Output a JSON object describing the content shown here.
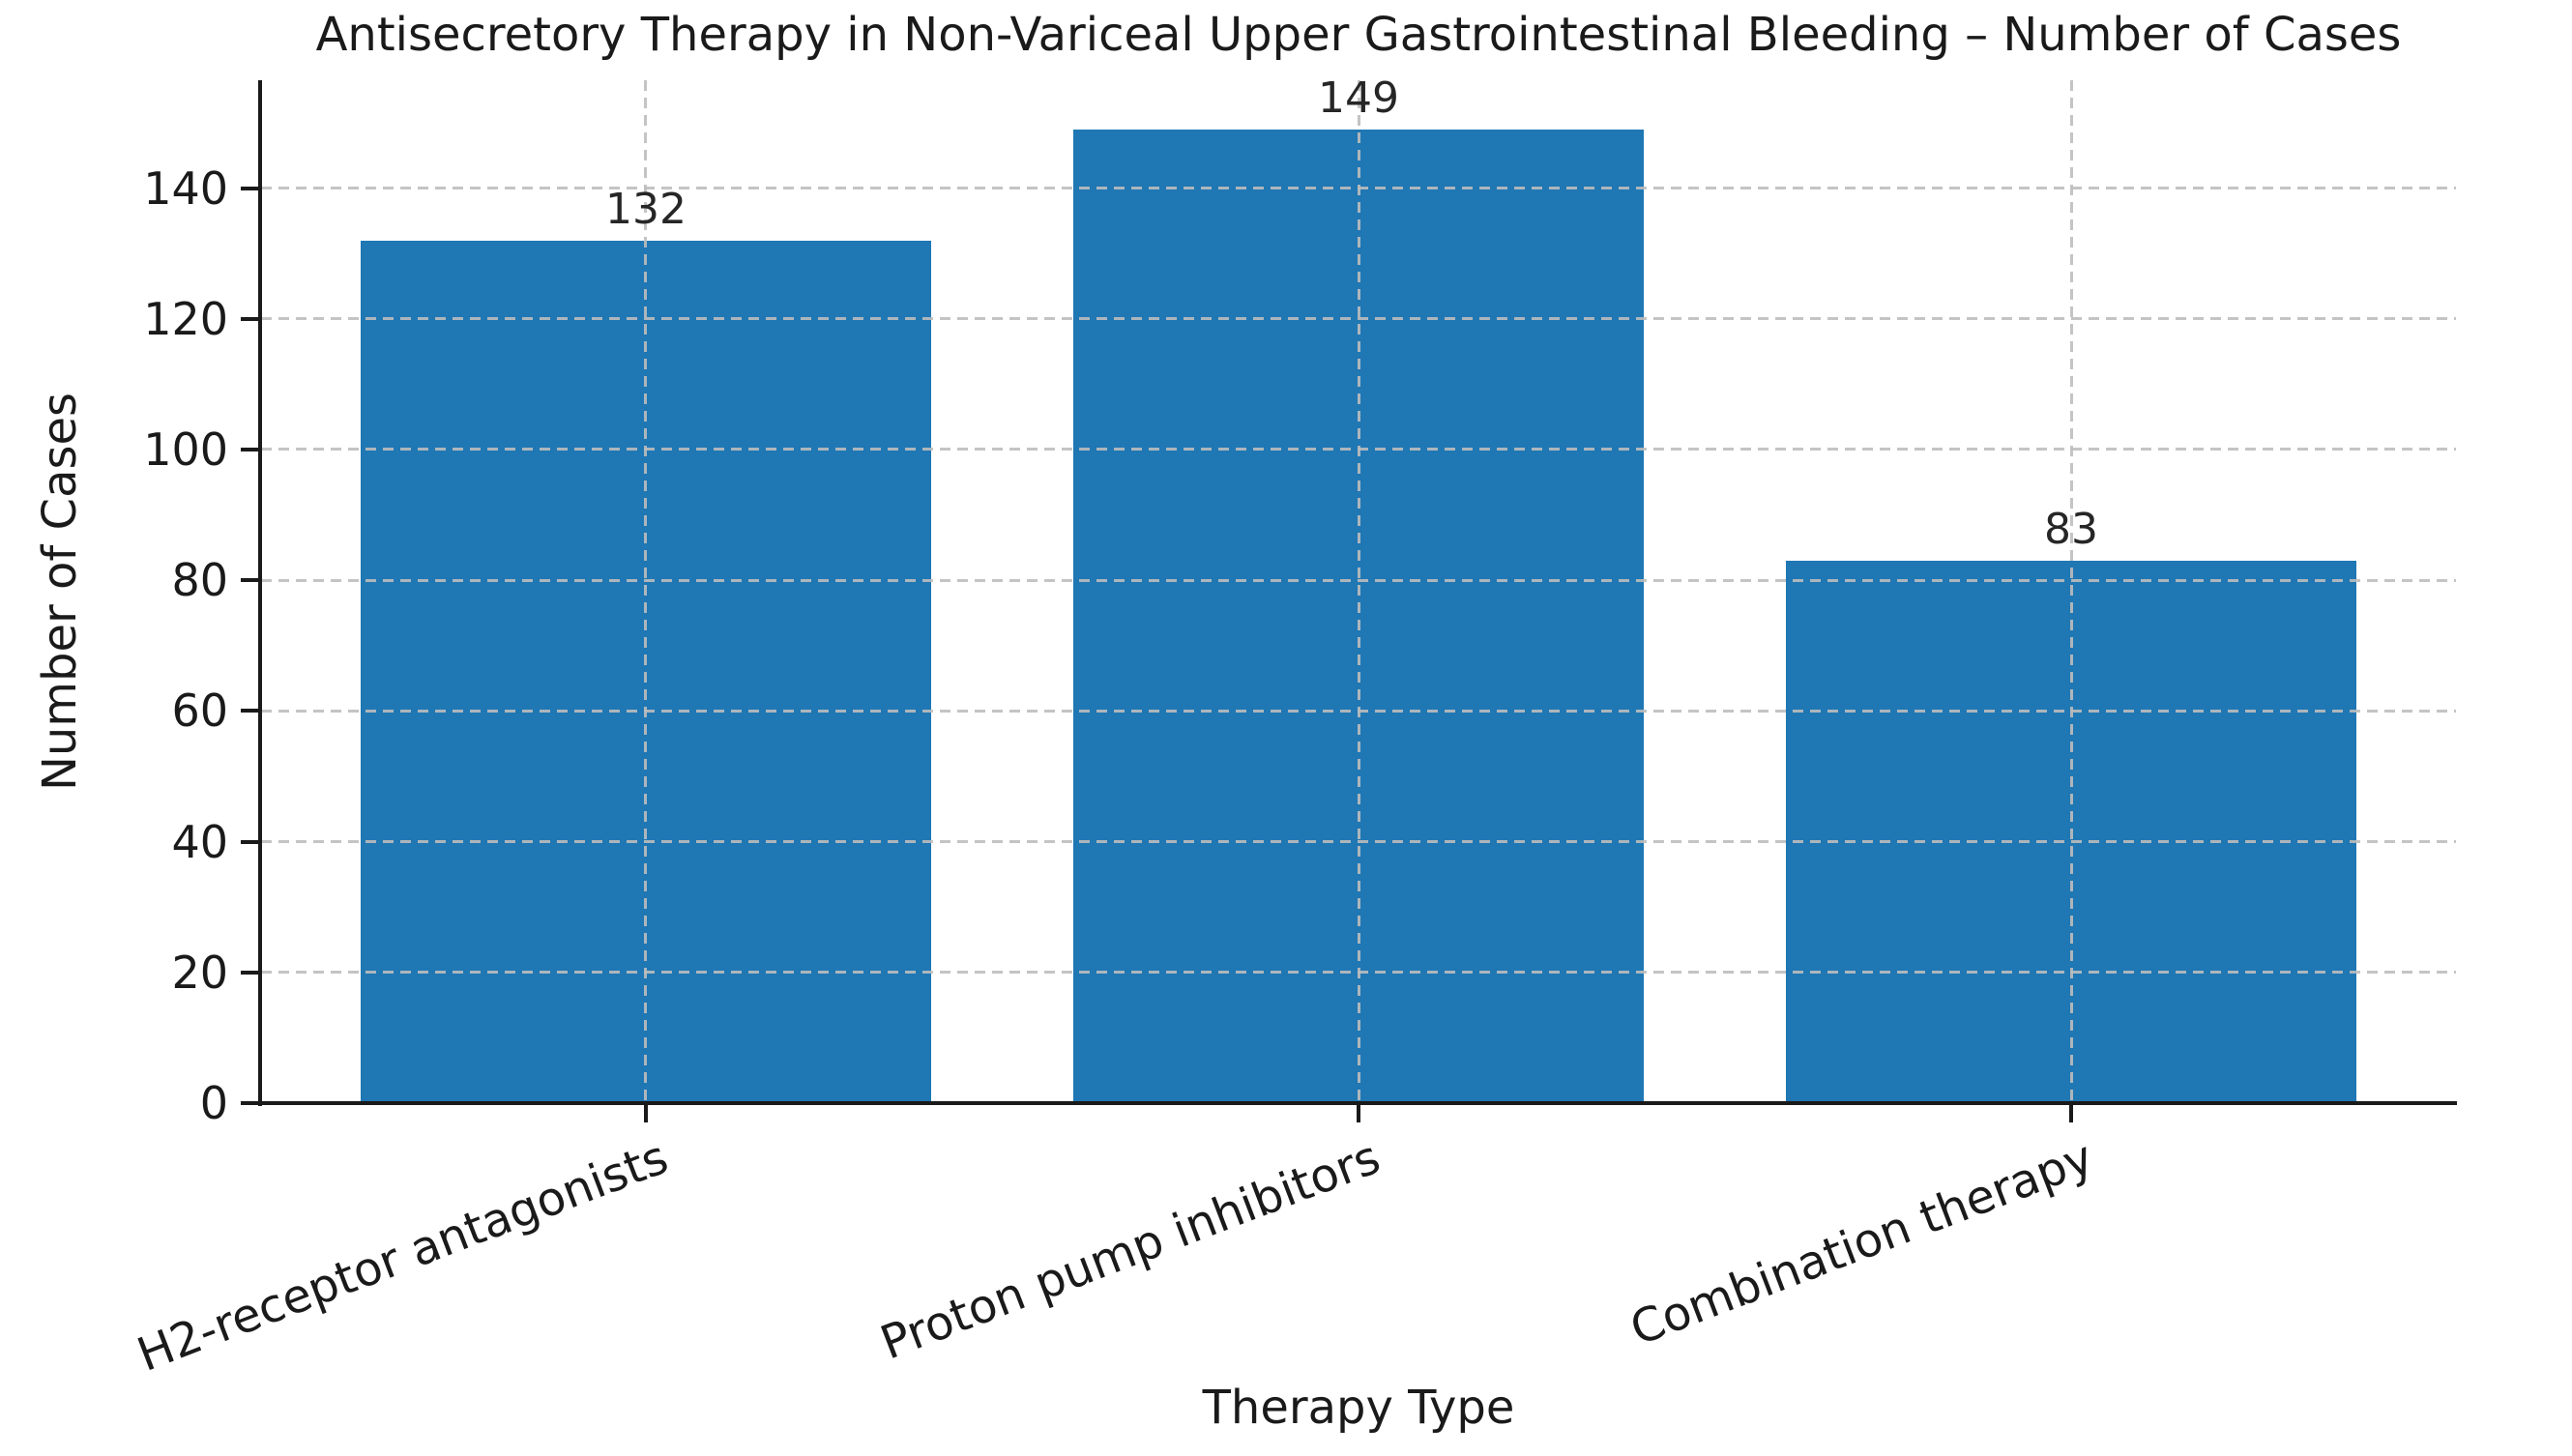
{
  "figure": {
    "background": "#ffffff"
  },
  "chart_data": {
    "type": "bar",
    "title": "Antisecretory Therapy in Non-Variceal Upper Gastrointestinal Bleeding – Number of Cases",
    "xlabel": "Therapy Type",
    "ylabel": "Number of Cases",
    "categories": [
      "H2-receptor antagonists",
      "Proton pump inhibitors",
      "Combination therapy"
    ],
    "values": [
      132,
      149,
      83
    ],
    "bar_value_labels": [
      "132",
      "149",
      "83"
    ],
    "yticks": [
      0,
      20,
      40,
      60,
      80,
      100,
      120,
      140
    ],
    "ylim": [
      0,
      156.5
    ],
    "grid": {
      "visible": true,
      "style": "dashed",
      "axes": "both",
      "color": "#bdbdbd",
      "drawn_over_bars": true
    },
    "legend": {
      "visible": false
    },
    "bar_color": "#1f77b4",
    "axis_color": "#1a1a1a",
    "text_color": "#1a1a1a",
    "spines_visible": [
      "left",
      "bottom"
    ],
    "xtick_label_rotation_deg": 21
  }
}
